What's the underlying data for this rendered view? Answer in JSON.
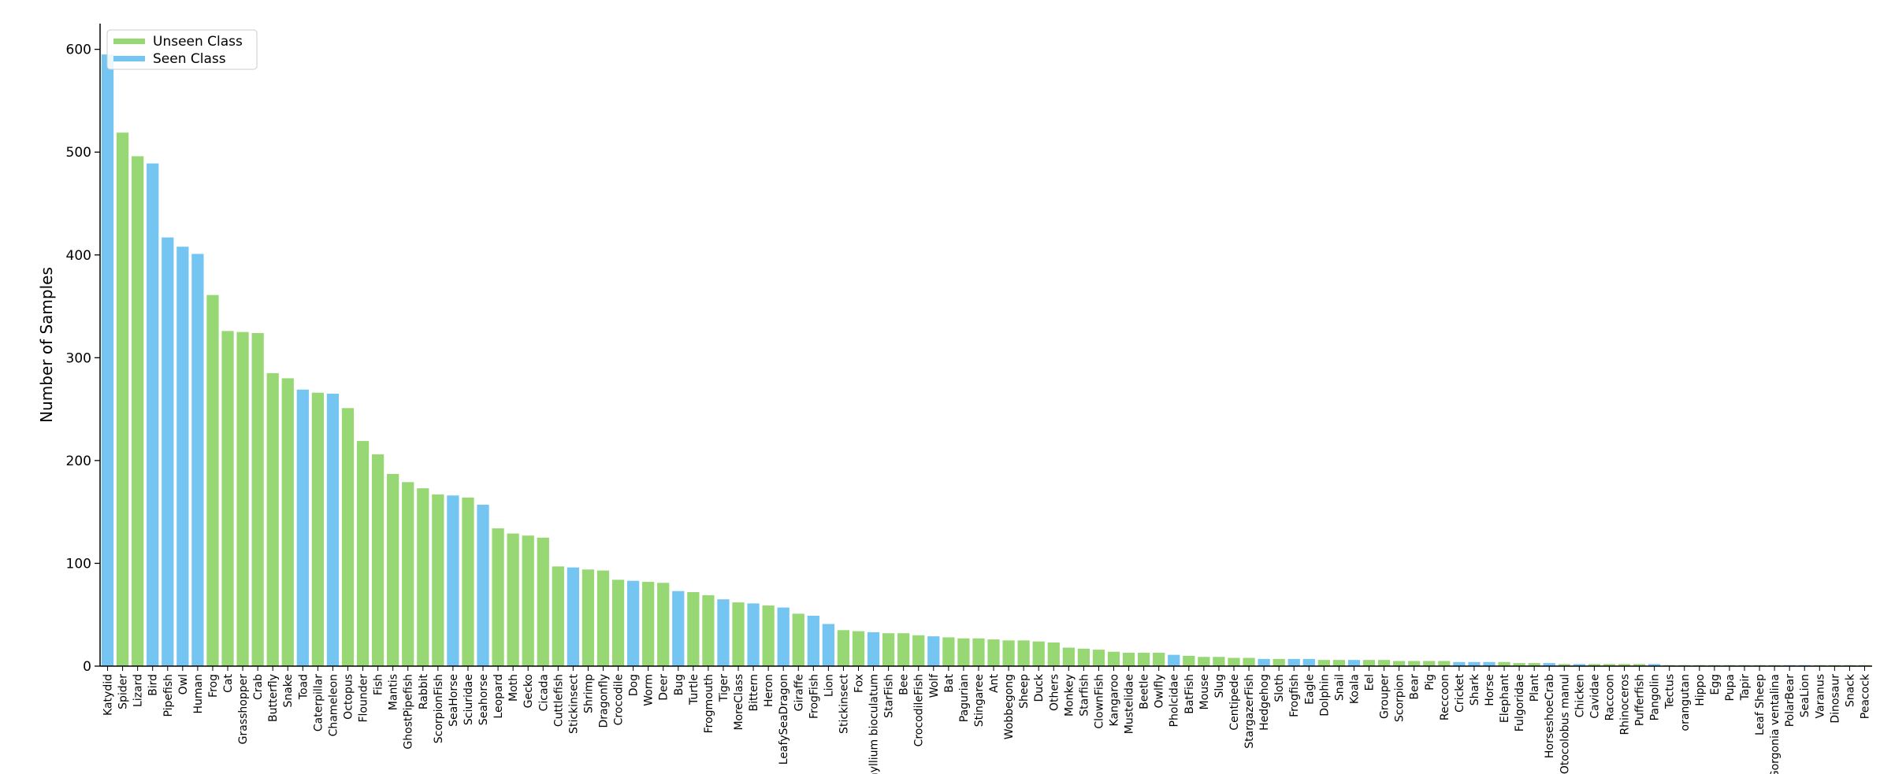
{
  "chart_data": {
    "type": "bar",
    "y_label": "Number of Samples",
    "categories": [
      "Katydid",
      "Spider",
      "Lizard",
      "Bird",
      "Pipefish",
      "Owl",
      "Human",
      "Frog",
      "Cat",
      "Grasshopper",
      "Crab",
      "Butterfly",
      "Snake",
      "Toad",
      "Caterpillar",
      "Chameleon",
      "Octopus",
      "Flounder",
      "Fish",
      "Mantis",
      "GhostPipefish",
      "Rabbit",
      "ScorpionFish",
      "SeaHorse",
      "Sciuridae",
      "Seahorse",
      "Leopard",
      "Moth",
      "Gecko",
      "Cicada",
      "Cuttlefish",
      "Stickinsect",
      "Shrimp",
      "Dragonfly",
      "Crocodile",
      "Dog",
      "Worm",
      "Deer",
      "Bug",
      "Turtle",
      "Frogmouth",
      "Tiger",
      "MoreClass",
      "Bittern",
      "Heron",
      "LeafySeaDragon",
      "Giraffe",
      "FrogFish",
      "Lion",
      "Stickinsect",
      "Fox",
      "hyllium bioculatum",
      "StarFish",
      "Bee",
      "CrocodileFish",
      "Wolf",
      "Bat",
      "Pagurian",
      "Stingaree",
      "Ant",
      "Wobbegong",
      "Sheep",
      "Duck",
      "Others",
      "Monkey",
      "Starfish",
      "ClownFish",
      "Kangaroo",
      "Mustelidae",
      "Beetle",
      "Owlfly",
      "Pholcidae",
      "BatFish",
      "Mouse",
      "Slug",
      "Centipede",
      "StargazerFish",
      "Hedgehog",
      "Sloth",
      "Frogfish",
      "Eagle",
      "Dolphin",
      "Snail",
      "Koala",
      "Eel",
      "Grouper",
      "Scorpion",
      "Bear",
      "Pig",
      "Reccoon",
      "Cricket",
      "Shark",
      "Horse",
      "Elephant",
      "Fulgoridae",
      "Plant",
      "HorseshoeCrab",
      "Otocolobus manul",
      "Chicken",
      "Cavidae",
      "Raccoon",
      "Rhinoceros",
      "Pufferfish",
      "Pangolin",
      "Tectus",
      "orangutan",
      "Hippo",
      "Egg",
      "Pupa",
      "Tapir",
      "Leaf Sheep",
      "Gorgonia ventalina",
      "PolarBear",
      "SeaLion",
      "Varanus",
      "Dinosaur",
      "Snack",
      "Peacock"
    ],
    "series": [
      {
        "name": "Unseen Class",
        "color": "#97d874",
        "values": [
          null,
          519,
          496,
          null,
          null,
          null,
          null,
          361,
          326,
          325,
          324,
          285,
          280,
          null,
          266,
          null,
          251,
          219,
          206,
          187,
          179,
          173,
          167,
          null,
          164,
          null,
          134,
          129,
          127,
          125,
          97,
          null,
          94,
          93,
          84,
          null,
          82,
          81,
          null,
          72,
          69,
          null,
          62,
          null,
          59,
          null,
          51,
          null,
          null,
          35,
          34,
          null,
          32,
          32,
          30,
          null,
          28,
          27,
          27,
          26,
          25,
          25,
          24,
          23,
          18,
          17,
          16,
          14,
          13,
          13,
          13,
          null,
          10,
          9,
          9,
          8,
          8,
          null,
          7,
          null,
          null,
          6,
          6,
          null,
          6,
          6,
          5,
          5,
          5,
          5,
          null,
          null,
          null,
          4,
          3,
          3,
          null,
          2,
          null,
          2,
          2,
          2,
          2,
          null,
          1,
          1,
          1,
          1,
          1,
          1,
          1,
          1,
          null,
          null,
          1,
          1,
          1,
          1
        ]
      },
      {
        "name": "Seen Class",
        "color": "#74c5f2",
        "values": [
          595,
          null,
          null,
          489,
          417,
          408,
          401,
          null,
          null,
          null,
          null,
          null,
          null,
          269,
          null,
          265,
          null,
          null,
          null,
          null,
          null,
          null,
          null,
          166,
          null,
          157,
          null,
          null,
          null,
          null,
          null,
          96,
          null,
          null,
          null,
          83,
          null,
          null,
          73,
          null,
          null,
          65,
          null,
          61,
          null,
          57,
          null,
          49,
          41,
          null,
          null,
          33,
          null,
          null,
          null,
          29,
          null,
          null,
          null,
          null,
          null,
          null,
          null,
          null,
          null,
          null,
          null,
          null,
          null,
          null,
          null,
          11,
          null,
          null,
          null,
          null,
          null,
          7,
          null,
          7,
          7,
          null,
          null,
          6,
          null,
          null,
          null,
          null,
          null,
          null,
          4,
          4,
          4,
          null,
          null,
          null,
          3,
          null,
          2,
          null,
          null,
          null,
          null,
          2,
          null,
          null,
          null,
          null,
          null,
          null,
          null,
          null,
          1,
          1,
          null,
          null,
          null,
          null
        ]
      }
    ],
    "ylim": [
      0,
      625
    ],
    "yticks": [
      0,
      100,
      200,
      300,
      400,
      500,
      600
    ],
    "legend": "upper left",
    "grid": false
  }
}
